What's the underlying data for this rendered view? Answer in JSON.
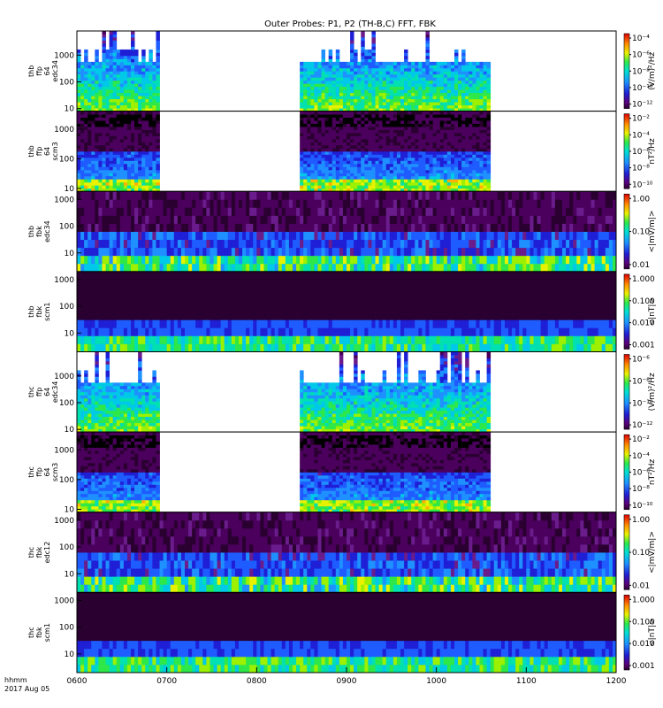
{
  "title": "Outer Probes: P1, P2 (TH-B,C) FFT, FBK",
  "x_ticks": [
    "0600",
    "0700",
    "0800",
    "0900",
    "1000",
    "1100",
    "1200"
  ],
  "time_label_1": "hhmm",
  "time_label_2": "2017 Aug 05",
  "panels": [
    {
      "id": "thb_ffp_edc34",
      "label": [
        "thb",
        "ffp",
        "64",
        "edc34"
      ],
      "kind": "fft",
      "ylim": [
        8,
        8000
      ],
      "y_ticks": [
        "10",
        "100",
        "1000"
      ],
      "colorbar": {
        "unit": "(V/m)²/Hz",
        "ticks": [
          "10⁻⁴",
          "10⁻⁶",
          "10⁻⁸",
          "10⁻¹⁰",
          "10⁻¹²"
        ]
      }
    },
    {
      "id": "thb_ffp_scm3",
      "label": [
        "thb",
        "ffp",
        "64",
        "scm3"
      ],
      "kind": "fft-scm",
      "ylim": [
        8,
        4000
      ],
      "y_ticks": [
        "10",
        "100",
        "1000"
      ],
      "colorbar": {
        "unit": "nT²/Hz",
        "ticks": [
          "10⁻²",
          "10⁻⁴",
          "10⁻⁶",
          "10⁻⁸",
          "10⁻¹⁰"
        ]
      }
    },
    {
      "id": "thb_fbk_edc34",
      "label": [
        "thb",
        "fbk",
        "edc34"
      ],
      "kind": "fbk",
      "ylim": [
        2,
        2000
      ],
      "y_ticks": [
        "10",
        "100",
        "1000"
      ],
      "colorbar": {
        "unit": "<|mV/m|>",
        "ticks": [
          "1.00",
          "0.10",
          "0.01"
        ]
      }
    },
    {
      "id": "thb_fbk_scm1",
      "label": [
        "thb",
        "fbk",
        "scm1"
      ],
      "kind": "fbk-scm",
      "ylim": [
        2,
        2000
      ],
      "y_ticks": [
        "10",
        "100",
        "1000"
      ],
      "colorbar": {
        "unit": "<|nT|>",
        "ticks": [
          "1.000",
          "0.100",
          "0.010",
          "0.001"
        ]
      }
    },
    {
      "id": "thc_ffp_edc34",
      "label": [
        "thc",
        "ffp",
        "64",
        "edc34"
      ],
      "kind": "fft",
      "ylim": [
        8,
        8000
      ],
      "y_ticks": [
        "10",
        "100",
        "1000"
      ],
      "colorbar": {
        "unit": "(V/m)²/Hz",
        "ticks": [
          "10⁻⁶",
          "10⁻⁸",
          "10⁻¹⁰",
          "10⁻¹²"
        ]
      }
    },
    {
      "id": "thc_ffp_scm3",
      "label": [
        "thc",
        "ffp",
        "64",
        "scm3"
      ],
      "kind": "fft-scm",
      "ylim": [
        8,
        4000
      ],
      "y_ticks": [
        "10",
        "100",
        "1000"
      ],
      "colorbar": {
        "unit": "nT²/Hz",
        "ticks": [
          "10⁻²",
          "10⁻⁴",
          "10⁻⁶",
          "10⁻⁸",
          "10⁻¹⁰"
        ]
      }
    },
    {
      "id": "thc_fbk_edc12",
      "label": [
        "thc",
        "fbk",
        "edc12"
      ],
      "kind": "fbk",
      "ylim": [
        2,
        2000
      ],
      "y_ticks": [
        "10",
        "100",
        "1000"
      ],
      "colorbar": {
        "unit": "<|mV/m|>",
        "ticks": [
          "1.00",
          "0.10",
          "0.01"
        ]
      }
    },
    {
      "id": "thc_fbk_scm1",
      "label": [
        "thc",
        "fbk",
        "scm1"
      ],
      "kind": "fbk-scm",
      "ylim": [
        2,
        2000
      ],
      "y_ticks": [
        "10",
        "100",
        "1000"
      ],
      "colorbar": {
        "unit": "<|nT|>",
        "ticks": [
          "1.000",
          "0.100",
          "0.010",
          "0.001"
        ]
      }
    }
  ],
  "chart_data": {
    "type": "heatmap",
    "title": "Outer Probes: P1, P2 (TH-B,C) FFT, FBK",
    "x_label": "hhmm  2017 Aug 05",
    "x_range": [
      "0600",
      "1200"
    ],
    "y_scale": "log",
    "colormap": "rainbow (purple → blue → cyan → green → yellow → red)",
    "fft_data_intervals": [
      [
        "0600",
        "0654"
      ],
      [
        "0830",
        "1036"
      ]
    ],
    "fbk_data_interval": [
      "0600",
      "1200"
    ],
    "series": [
      {
        "name": "thb ffp 64 edc34",
        "unit": "(V/m)²/Hz"
      },
      {
        "name": "thb ffp 64 scm3",
        "unit": "nT²/Hz"
      },
      {
        "name": "thb fbk edc34",
        "unit": "<|mV/m|>"
      },
      {
        "name": "thb fbk scm1",
        "unit": "<|nT|>"
      },
      {
        "name": "thc ffp 64 edc34",
        "unit": "(V/m)²/Hz"
      },
      {
        "name": "thc ffp 64 scm3",
        "unit": "nT²/Hz"
      },
      {
        "name": "thc fbk edc12",
        "unit": "<|mV/m|>"
      },
      {
        "name": "thc fbk scm1",
        "unit": "<|nT|>"
      }
    ]
  }
}
